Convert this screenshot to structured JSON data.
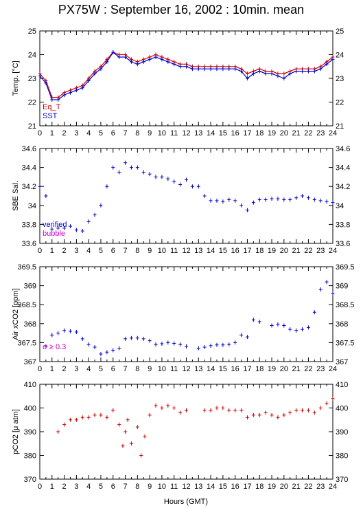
{
  "title": "PX75W : September 16, 2002 : 10min. mean",
  "xlabel": "Hours (GMT)",
  "colors": {
    "red": "#cc0000",
    "blue": "#0000cc",
    "magenta": "#cc00cc",
    "frame": "#000000"
  },
  "chart_data": [
    {
      "type": "line",
      "ylabel": "Temp. [°C]",
      "xlim": [
        0,
        24
      ],
      "ylim": [
        21,
        25
      ],
      "yticks": [
        "21",
        "22",
        "23",
        "24",
        "25"
      ],
      "xticks": [
        "0",
        "1",
        "2",
        "3",
        "4",
        "5",
        "6",
        "7",
        "8",
        "9",
        "10",
        "11",
        "12",
        "13",
        "14",
        "15",
        "16",
        "17",
        "18",
        "19",
        "20",
        "21",
        "22",
        "23",
        "24"
      ],
      "legend": [
        {
          "label": "Eq_T",
          "color": "#cc0000"
        },
        {
          "label": "SST",
          "color": "#0000cc"
        }
      ],
      "series": [
        {
          "name": "Eq_T",
          "color": "#cc0000",
          "x": [
            0,
            0.5,
            1,
            1.5,
            2,
            2.5,
            3,
            3.5,
            4,
            4.5,
            5,
            5.5,
            6,
            6.5,
            7,
            7.5,
            8,
            8.5,
            9,
            9.5,
            10,
            10.5,
            11,
            11.5,
            12,
            12.5,
            13,
            13.5,
            14,
            14.5,
            15,
            15.5,
            16,
            16.5,
            17,
            17.5,
            18,
            18.5,
            19,
            19.5,
            20,
            20.5,
            21,
            21.5,
            22,
            22.5,
            23,
            23.5,
            24
          ],
          "y": [
            23.2,
            22.9,
            22.2,
            22.2,
            22.4,
            22.5,
            22.6,
            22.7,
            23.0,
            23.3,
            23.5,
            23.8,
            24.1,
            24.0,
            24.0,
            23.8,
            23.7,
            23.8,
            23.9,
            24.0,
            23.9,
            23.8,
            23.7,
            23.6,
            23.6,
            23.5,
            23.5,
            23.5,
            23.5,
            23.5,
            23.5,
            23.5,
            23.5,
            23.4,
            23.2,
            23.3,
            23.4,
            23.3,
            23.3,
            23.2,
            23.2,
            23.3,
            23.4,
            23.4,
            23.4,
            23.4,
            23.5,
            23.7,
            23.9
          ]
        },
        {
          "name": "SST",
          "color": "#0000cc",
          "x": [
            0,
            0.5,
            1,
            1.5,
            2,
            2.5,
            3,
            3.5,
            4,
            4.5,
            5,
            5.5,
            6,
            6.5,
            7,
            7.5,
            8,
            8.5,
            9,
            9.5,
            10,
            10.5,
            11,
            11.5,
            12,
            12.5,
            13,
            13.5,
            14,
            14.5,
            15,
            15.5,
            16,
            16.5,
            17,
            17.5,
            18,
            18.5,
            19,
            19.5,
            20,
            20.5,
            21,
            21.5,
            22,
            22.5,
            23,
            23.5,
            24
          ],
          "y": [
            23.1,
            22.8,
            22.1,
            22.1,
            22.3,
            22.4,
            22.5,
            22.6,
            22.9,
            23.2,
            23.4,
            23.7,
            24.1,
            23.9,
            23.9,
            23.7,
            23.6,
            23.7,
            23.8,
            23.9,
            23.8,
            23.7,
            23.6,
            23.5,
            23.5,
            23.4,
            23.4,
            23.4,
            23.4,
            23.4,
            23.4,
            23.4,
            23.4,
            23.3,
            23.0,
            23.2,
            23.3,
            23.2,
            23.2,
            23.1,
            23.0,
            23.2,
            23.3,
            23.3,
            23.3,
            23.3,
            23.4,
            23.6,
            23.8
          ]
        }
      ]
    },
    {
      "type": "scatter",
      "ylabel": "SBE Sal.",
      "xlim": [
        0,
        24
      ],
      "ylim": [
        33.6,
        34.6
      ],
      "yticks": [
        "33.6",
        "33.8",
        "34",
        "34.2",
        "34.4",
        "34.6"
      ],
      "xticks": [
        "0",
        "1",
        "2",
        "3",
        "4",
        "5",
        "6",
        "7",
        "8",
        "9",
        "10",
        "11",
        "12",
        "13",
        "14",
        "15",
        "16",
        "17",
        "18",
        "19",
        "20",
        "21",
        "22",
        "23",
        "24"
      ],
      "legend": [
        {
          "label": "verified",
          "color": "#0000cc"
        },
        {
          "label": "bubble",
          "color": "#cc00cc"
        }
      ],
      "series": [
        {
          "name": "verified",
          "color": "#0000cc",
          "x": [
            0,
            0.5,
            1,
            1.5,
            2,
            2.5,
            3,
            3.5,
            4,
            4.5,
            5,
            5.5,
            6,
            6.5,
            7,
            7.5,
            8,
            8.5,
            9,
            9.5,
            10,
            10.5,
            11,
            11.5,
            12,
            12.5,
            13,
            13.5,
            14,
            14.5,
            15,
            15.5,
            16,
            16.5,
            17,
            17.5,
            18,
            18.5,
            19,
            19.5,
            20,
            20.5,
            21,
            21.5,
            22,
            22.5,
            23,
            23.5,
            24
          ],
          "y": [
            34.2,
            34.1,
            33.75,
            33.76,
            33.76,
            33.78,
            33.74,
            33.73,
            33.83,
            33.9,
            34.0,
            34.2,
            34.4,
            34.35,
            34.45,
            34.4,
            34.4,
            34.35,
            34.33,
            34.3,
            34.3,
            34.28,
            34.25,
            34.22,
            34.27,
            34.2,
            34.2,
            34.1,
            34.05,
            34.05,
            34.04,
            34.06,
            34.05,
            34.0,
            33.95,
            34.03,
            34.06,
            34.06,
            34.07,
            34.07,
            34.06,
            34.06,
            34.08,
            34.1,
            34.08,
            34.06,
            34.05,
            34.04,
            34.03
          ]
        }
      ]
    },
    {
      "type": "scatter",
      "ylabel": "Air xCO2 [ppm]",
      "xlim": [
        0,
        24
      ],
      "ylim": [
        367,
        369.5
      ],
      "yticks": [
        "367",
        "367.5",
        "368",
        "368.5",
        "369",
        "369.5"
      ],
      "xticks": [
        "0",
        "1",
        "2",
        "3",
        "4",
        "5",
        "6",
        "7",
        "8",
        "9",
        "10",
        "11",
        "12",
        "13",
        "14",
        "15",
        "16",
        "17",
        "18",
        "19",
        "20",
        "21",
        "22",
        "23",
        "24"
      ],
      "annotation": "σ ≥ 0.3",
      "series": [
        {
          "name": "Air xCO2",
          "color": "#0000cc",
          "x": [
            0.5,
            1,
            1.5,
            2,
            2.5,
            3,
            3.5,
            4,
            4.5,
            5,
            5.5,
            6,
            6.5,
            7,
            7.5,
            8,
            8.5,
            9,
            9.5,
            10,
            10.5,
            11,
            11.5,
            12,
            13,
            13.5,
            14,
            14.5,
            15,
            15.5,
            16,
            16.5,
            17,
            17.5,
            18,
            19,
            19.5,
            20,
            20.5,
            21,
            21.5,
            22,
            22.5,
            23,
            23.5,
            24
          ],
          "y": [
            367.4,
            367.7,
            367.75,
            367.82,
            367.8,
            367.78,
            367.6,
            367.45,
            367.38,
            367.2,
            367.25,
            367.3,
            367.35,
            367.6,
            367.62,
            367.62,
            367.6,
            367.55,
            367.45,
            367.47,
            367.5,
            367.48,
            367.45,
            367.4,
            367.35,
            367.38,
            367.42,
            367.44,
            367.44,
            367.45,
            367.5,
            367.7,
            367.65,
            368.1,
            368.05,
            367.95,
            367.98,
            367.95,
            367.85,
            367.82,
            367.85,
            367.9,
            368.3,
            368.9,
            369.1,
            368.8
          ]
        }
      ]
    },
    {
      "type": "scatter",
      "ylabel": "pCO2 [μ atm]",
      "xlim": [
        0,
        24
      ],
      "ylim": [
        370,
        410
      ],
      "yticks": [
        "370",
        "380",
        "390",
        "400",
        "410"
      ],
      "xticks": [
        "0",
        "1",
        "2",
        "3",
        "4",
        "5",
        "6",
        "7",
        "8",
        "9",
        "10",
        "11",
        "12",
        "13",
        "14",
        "15",
        "16",
        "17",
        "18",
        "19",
        "20",
        "21",
        "22",
        "23",
        "24"
      ],
      "series": [
        {
          "name": "pCO2",
          "color": "#cc0000",
          "x": [
            1.5,
            2,
            2.5,
            3,
            3.5,
            4,
            4.5,
            5,
            5.5,
            6,
            6.5,
            6.8,
            7,
            7.2,
            7.5,
            8,
            8.3,
            8.6,
            9,
            9.5,
            10,
            10.5,
            11,
            11.5,
            12,
            13.5,
            14,
            14.5,
            15,
            15.5,
            16,
            16.5,
            17,
            17.5,
            18,
            18.5,
            19,
            19.5,
            20,
            20.5,
            21,
            21.5,
            22,
            22.5,
            23,
            23.5,
            24
          ],
          "y": [
            390,
            393,
            395,
            395,
            396,
            396,
            397,
            397,
            396,
            399,
            393,
            384,
            390,
            395,
            385,
            392,
            380,
            388,
            397,
            401,
            400,
            401,
            400,
            398,
            399,
            399,
            399,
            400,
            400,
            399,
            399,
            399,
            396,
            397,
            397,
            398,
            397,
            396,
            397,
            398,
            399,
            399,
            399,
            398,
            400,
            402,
            404
          ]
        }
      ]
    }
  ]
}
